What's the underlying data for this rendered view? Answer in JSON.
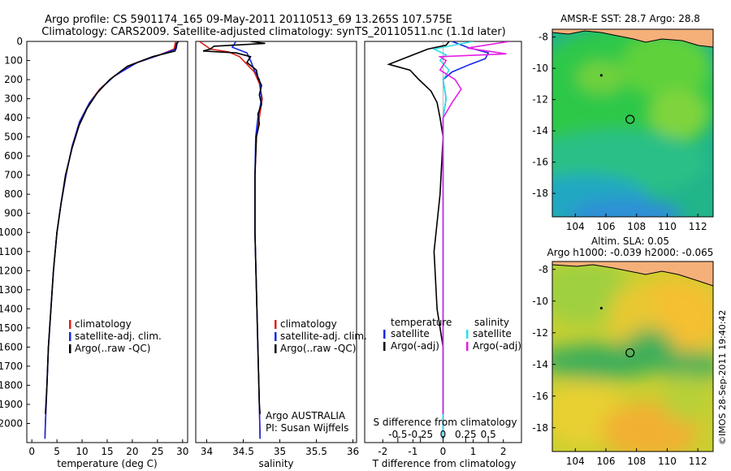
{
  "header": {
    "title_line1": "Argo profile: CS 5901174_165 09-May-2011 20110513_69 13.265S 107.575E",
    "title_line2": "Climatology: CARS2009. Satellite-adjusted climatology: synTS_20110511.nc (1.1d later)"
  },
  "colors": {
    "climatology": "#e0201a",
    "satellite": "#1428e6",
    "argo": "#000000",
    "salinity_satellite": "#2ee0e6",
    "salinity_argo": "#e61ee6"
  },
  "chart_data": [
    {
      "type": "line",
      "id": "temperature",
      "xlabel": "temperature (deg C)",
      "xticks": [
        0,
        5,
        10,
        15,
        20,
        25,
        30
      ],
      "xlim": [
        -1,
        31
      ],
      "ylim": [
        0,
        2100
      ],
      "yticks": [
        0,
        100,
        200,
        300,
        400,
        500,
        600,
        700,
        800,
        900,
        1000,
        1100,
        1200,
        1300,
        1400,
        1500,
        1600,
        1700,
        1800,
        1900,
        2000
      ],
      "legend": [
        "climatology",
        "satellite-adj. clim.",
        "Argo(..raw -QC)"
      ],
      "series": [
        {
          "name": "climatology",
          "color": "#e0201a",
          "points": [
            [
              28.6,
              0
            ],
            [
              28.3,
              40
            ],
            [
              25,
              75
            ],
            [
              20,
              120
            ],
            [
              16,
              190
            ],
            [
              13.5,
              250
            ],
            [
              11.5,
              320
            ],
            [
              9.5,
              420
            ],
            [
              8,
              550
            ],
            [
              6.8,
              700
            ],
            [
              5.8,
              850
            ],
            [
              5,
              1000
            ],
            [
              4.3,
              1200
            ],
            [
              3.8,
              1400
            ],
            [
              3.3,
              1600
            ],
            [
              3,
              1800
            ],
            [
              2.7,
              2000
            ],
            [
              2.6,
              2080
            ]
          ]
        },
        {
          "name": "satellite-adj. clim.",
          "color": "#1428e6",
          "points": [
            [
              29,
              0
            ],
            [
              28.7,
              40
            ],
            [
              25.5,
              70
            ],
            [
              21,
              110
            ],
            [
              16.5,
              180
            ],
            [
              13.8,
              245
            ],
            [
              11.5,
              320
            ],
            [
              9.5,
              420
            ],
            [
              8,
              550
            ],
            [
              6.8,
              700
            ],
            [
              5.8,
              850
            ],
            [
              5,
              1000
            ],
            [
              4.3,
              1200
            ],
            [
              3.8,
              1400
            ],
            [
              3.3,
              1600
            ],
            [
              3,
              1800
            ],
            [
              2.7,
              2000
            ],
            [
              2.6,
              2080
            ]
          ]
        },
        {
          "name": "Argo(..raw -QC)",
          "color": "#000000",
          "points": [
            [
              29.2,
              0
            ],
            [
              28.8,
              10
            ],
            [
              28.5,
              50
            ],
            [
              24,
              80
            ],
            [
              19,
              130
            ],
            [
              15.5,
              200
            ],
            [
              13,
              270
            ],
            [
              11,
              350
            ],
            [
              9.4,
              440
            ],
            [
              8,
              560
            ],
            [
              6.7,
              700
            ],
            [
              5.8,
              850
            ],
            [
              5,
              1000
            ],
            [
              4.3,
              1200
            ],
            [
              3.8,
              1400
            ],
            [
              3.3,
              1600
            ],
            [
              3,
              1800
            ],
            [
              2.7,
              1950
            ]
          ]
        }
      ]
    },
    {
      "type": "line",
      "id": "salinity",
      "xlabel": "salinity",
      "xticks": [
        34,
        34.5,
        35,
        35.5,
        36
      ],
      "xlim": [
        33.85,
        36.05
      ],
      "ylim": [
        0,
        2100
      ],
      "legend": [
        "climatology",
        "satellite-adj. clim.",
        "Argo(..raw -QC)"
      ],
      "annotations": [
        "Argo AUSTRALIA",
        "PI: Susan Wijffels"
      ],
      "series": [
        {
          "name": "climatology",
          "color": "#e0201a",
          "points": [
            [
              33.9,
              0
            ],
            [
              34.05,
              40
            ],
            [
              34.3,
              55
            ],
            [
              34.45,
              80
            ],
            [
              34.55,
              120
            ],
            [
              34.65,
              160
            ],
            [
              34.72,
              220
            ],
            [
              34.76,
              300
            ],
            [
              34.72,
              400
            ],
            [
              34.68,
              500
            ],
            [
              34.66,
              700
            ],
            [
              34.66,
              1000
            ],
            [
              34.68,
              1300
            ],
            [
              34.7,
              1600
            ],
            [
              34.72,
              1900
            ],
            [
              34.73,
              2080
            ]
          ]
        },
        {
          "name": "satellite-adj. clim.",
          "color": "#1428e6",
          "points": [
            [
              34.4,
              0
            ],
            [
              34.35,
              30
            ],
            [
              34.55,
              60
            ],
            [
              34.6,
              100
            ],
            [
              34.65,
              150
            ],
            [
              34.72,
              200
            ],
            [
              34.75,
              300
            ],
            [
              34.7,
              400
            ],
            [
              34.67,
              500
            ],
            [
              34.66,
              700
            ],
            [
              34.66,
              1000
            ],
            [
              34.68,
              1300
            ],
            [
              34.7,
              1600
            ],
            [
              34.72,
              1900
            ],
            [
              34.73,
              2080
            ]
          ]
        },
        {
          "name": "Argo(..raw -QC)",
          "color": "#000000",
          "points": [
            [
              34.6,
              0
            ],
            [
              34.8,
              10
            ],
            [
              34.1,
              25
            ],
            [
              34.05,
              40
            ],
            [
              33.95,
              50
            ],
            [
              34.4,
              60
            ],
            [
              34.6,
              80
            ],
            [
              34.55,
              110
            ],
            [
              34.68,
              150
            ],
            [
              34.7,
              190
            ],
            [
              34.75,
              230
            ],
            [
              34.72,
              280
            ],
            [
              34.75,
              330
            ],
            [
              34.7,
              380
            ],
            [
              34.72,
              430
            ],
            [
              34.68,
              500
            ],
            [
              34.66,
              700
            ],
            [
              34.66,
              1000
            ],
            [
              34.68,
              1300
            ],
            [
              34.7,
              1600
            ],
            [
              34.72,
              1900
            ],
            [
              34.73,
              1950
            ]
          ]
        }
      ]
    },
    {
      "type": "line",
      "id": "difference",
      "xlabel": "T difference from climatology",
      "xlabel2": "S difference from climatology",
      "xticks": [
        -2,
        -1,
        0,
        1,
        2
      ],
      "xlim": [
        -2.6,
        2.6
      ],
      "xticks2": [
        {
          "v": -1.5,
          "label": "-0.5"
        },
        {
          "v": -0.75,
          "label": "-0.25"
        },
        {
          "v": 0,
          "label": "0"
        },
        {
          "v": 0.75,
          "label": "0.25"
        },
        {
          "v": 1.5,
          "label": "0.5"
        }
      ],
      "ylim": [
        0,
        2100
      ],
      "legend_left_title": "temperature",
      "legend_right_title": "salinity",
      "legend_left": [
        "satellite",
        "Argo(-adj)"
      ],
      "legend_right": [
        "satellite",
        "Argo(-adj)"
      ],
      "series": [
        {
          "name": "T satellite",
          "color": "#1428e6",
          "points": [
            [
              0.3,
              0
            ],
            [
              0.8,
              30
            ],
            [
              1.5,
              60
            ],
            [
              1.4,
              90
            ],
            [
              0.9,
              120
            ],
            [
              0.3,
              160
            ],
            [
              0,
              200
            ],
            [
              0.1,
              300
            ],
            [
              0,
              400
            ],
            [
              0,
              1000
            ],
            [
              0,
              2080
            ]
          ]
        },
        {
          "name": "T Argo(-adj)",
          "color": "#000000",
          "points": [
            [
              0.2,
              0
            ],
            [
              0.1,
              20
            ],
            [
              -0.5,
              40
            ],
            [
              -1.8,
              120
            ],
            [
              -1.1,
              150
            ],
            [
              -0.8,
              200
            ],
            [
              -0.4,
              260
            ],
            [
              -0.2,
              320
            ],
            [
              -0.1,
              400
            ],
            [
              0,
              500
            ],
            [
              -0.1,
              800
            ],
            [
              -0.3,
              1100
            ],
            [
              -0.2,
              1400
            ],
            [
              0,
              1600
            ],
            [
              0,
              1950
            ]
          ]
        },
        {
          "name": "S satellite",
          "color": "#2ee0e6",
          "points": [
            [
              1.0,
              0
            ],
            [
              -0.3,
              40
            ],
            [
              0.1,
              70
            ],
            [
              -0.1,
              100
            ],
            [
              0.2,
              150
            ],
            [
              0,
              200
            ],
            [
              0.1,
              300
            ],
            [
              0,
              400
            ],
            [
              0,
              700
            ],
            [
              0,
              2080
            ]
          ]
        },
        {
          "name": "S Argo(-adj)",
          "color": "#e61ee6",
          "points": [
            [
              2.2,
              0
            ],
            [
              0.8,
              35
            ],
            [
              2.1,
              65
            ],
            [
              -0.1,
              80
            ],
            [
              0.1,
              100
            ],
            [
              -0.1,
              150
            ],
            [
              0.4,
              200
            ],
            [
              0.6,
              250
            ],
            [
              0.3,
              320
            ],
            [
              0,
              400
            ],
            [
              0,
              1000
            ],
            [
              0,
              1950
            ]
          ]
        }
      ]
    },
    {
      "type": "heatmap",
      "id": "sst_map",
      "title": "AMSR-E SST: 28.7 Argo: 28.8",
      "xticks": [
        104,
        106,
        108,
        110,
        112
      ],
      "yticks": [
        -8,
        -10,
        -12,
        -14,
        -16,
        -18
      ],
      "xlim": [
        102.5,
        113
      ],
      "ylim": [
        -19.5,
        -7.5
      ],
      "float_position": [
        107.575,
        -13.265
      ]
    },
    {
      "type": "heatmap",
      "id": "sla_map",
      "title": "Altim. SLA: 0.05",
      "subtitle": "Argo h1000: -0.039 h2000: -0.065",
      "xticks": [
        104,
        106,
        108,
        110,
        112
      ],
      "yticks": [
        -8,
        -10,
        -12,
        -14,
        -16,
        -18
      ],
      "xlim": [
        102.5,
        113
      ],
      "ylim": [
        -19.5,
        -7.5
      ],
      "float_position": [
        107.575,
        -13.265
      ]
    }
  ],
  "footer_stamp": "©IMOS 28-Sep-2011 19:40:42"
}
